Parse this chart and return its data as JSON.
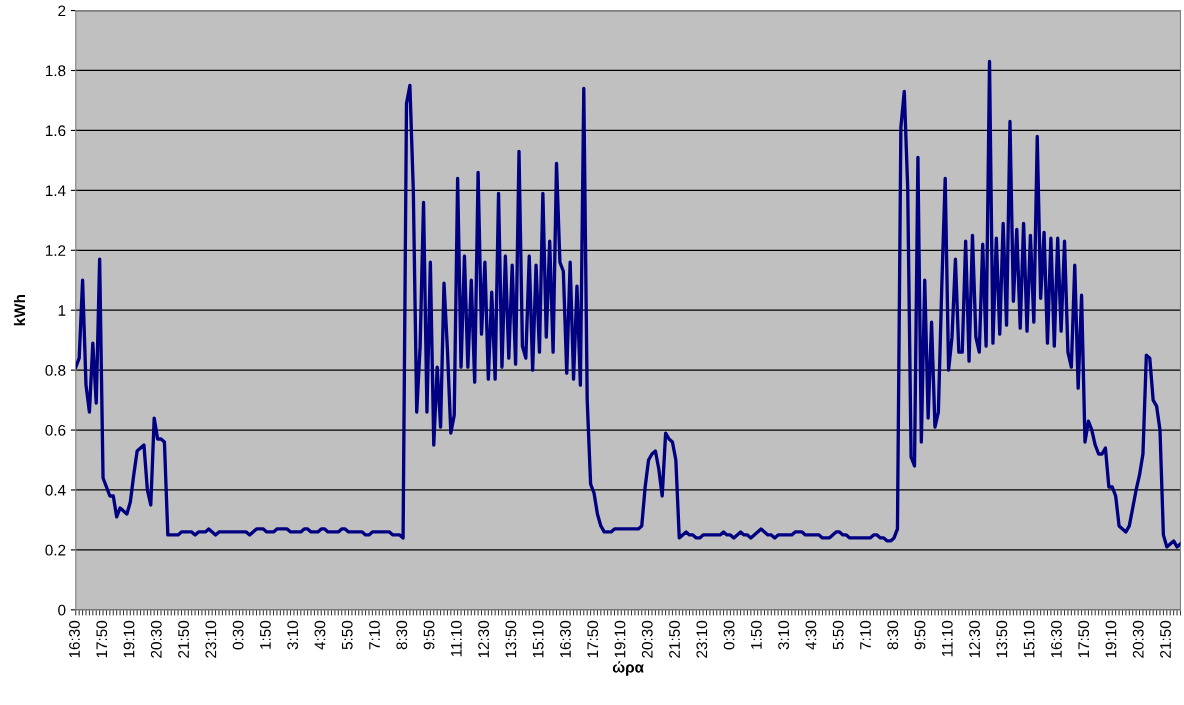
{
  "chart_data": {
    "type": "line",
    "xlabel": "ώρα",
    "ylabel": "kWh",
    "ylim": [
      0,
      2
    ],
    "yticks": [
      0,
      0.2,
      0.4,
      0.6,
      0.8,
      1,
      1.2,
      1.4,
      1.6,
      1.8,
      2
    ],
    "categories": [
      "16:30",
      null,
      null,
      null,
      null,
      null,
      null,
      null,
      "17:50",
      null,
      null,
      null,
      null,
      null,
      null,
      null,
      "19:10",
      null,
      null,
      null,
      null,
      null,
      null,
      null,
      "20:30",
      null,
      null,
      null,
      null,
      null,
      null,
      null,
      "21:50",
      null,
      null,
      null,
      null,
      null,
      null,
      null,
      "23:10",
      null,
      null,
      null,
      null,
      null,
      null,
      null,
      "0:30",
      null,
      null,
      null,
      null,
      null,
      null,
      null,
      "1:50",
      null,
      null,
      null,
      null,
      null,
      null,
      null,
      "3:10",
      null,
      null,
      null,
      null,
      null,
      null,
      null,
      "4:30",
      null,
      null,
      null,
      null,
      null,
      null,
      null,
      "5:50",
      null,
      null,
      null,
      null,
      null,
      null,
      null,
      "7:10",
      null,
      null,
      null,
      null,
      null,
      null,
      null,
      "8:30",
      null,
      null,
      null,
      null,
      null,
      null,
      null,
      "9:50",
      null,
      null,
      null,
      null,
      null,
      null,
      null,
      "11:10",
      null,
      null,
      null,
      null,
      null,
      null,
      null,
      "12:30",
      null,
      null,
      null,
      null,
      null,
      null,
      null,
      "13:50",
      null,
      null,
      null,
      null,
      null,
      null,
      null,
      "15:10",
      null,
      null,
      null,
      null,
      null,
      null,
      null,
      "16:30",
      null,
      null,
      null,
      null,
      null,
      null,
      null,
      "17:50",
      null,
      null,
      null,
      null,
      null,
      null,
      null,
      "19:10",
      null,
      null,
      null,
      null,
      null,
      null,
      null,
      "20:30",
      null,
      null,
      null,
      null,
      null,
      null,
      null,
      "21:50",
      null,
      null,
      null,
      null,
      null,
      null,
      null,
      "23:10",
      null,
      null,
      null,
      null,
      null,
      null,
      null,
      "0:30",
      null,
      null,
      null,
      null,
      null,
      null,
      null,
      "1:50",
      null,
      null,
      null,
      null,
      null,
      null,
      null,
      "3:10",
      null,
      null,
      null,
      null,
      null,
      null,
      null,
      "4:30",
      null,
      null,
      null,
      null,
      null,
      null,
      null,
      "5:50",
      null,
      null,
      null,
      null,
      null,
      null,
      null,
      "7:10",
      null,
      null,
      null,
      null,
      null,
      null,
      null,
      "8:30",
      null,
      null,
      null,
      null,
      null,
      null,
      null,
      "9:50",
      null,
      null,
      null,
      null,
      null,
      null,
      null,
      "11:10",
      null,
      null,
      null,
      null,
      null,
      null,
      null,
      "12:30",
      null,
      null,
      null,
      null,
      null,
      null,
      null,
      "13:50",
      null,
      null,
      null,
      null,
      null,
      null,
      null,
      "15:10",
      null,
      null,
      null,
      null,
      null,
      null,
      null,
      "16:30",
      null,
      null,
      null,
      null,
      null,
      null,
      null,
      "17:50",
      null,
      null,
      null,
      null,
      null,
      null,
      null,
      "19:10",
      null,
      null,
      null,
      null,
      null,
      null,
      null,
      "20:30",
      null,
      null,
      null,
      null,
      null,
      null,
      null,
      "21:50",
      null,
      null,
      null,
      null
    ],
    "grid": "y",
    "marker": "none",
    "line_style": "solid",
    "series": [
      {
        "color": "#000080",
        "values": [
          0.81,
          0.84,
          1.1,
          0.75,
          0.66,
          0.89,
          0.69,
          1.17,
          0.44,
          0.41,
          0.38,
          0.38,
          0.31,
          0.34,
          0.33,
          0.32,
          0.36,
          0.45,
          0.53,
          0.54,
          0.55,
          0.4,
          0.35,
          0.64,
          0.57,
          0.57,
          0.56,
          0.25,
          0.25,
          0.25,
          0.25,
          0.26,
          0.26,
          0.26,
          0.26,
          0.25,
          0.26,
          0.26,
          0.26,
          0.27,
          0.26,
          0.25,
          0.26,
          0.26,
          0.26,
          0.26,
          0.26,
          0.26,
          0.26,
          0.26,
          0.26,
          0.25,
          0.26,
          0.27,
          0.27,
          0.27,
          0.26,
          0.26,
          0.26,
          0.27,
          0.27,
          0.27,
          0.27,
          0.26,
          0.26,
          0.26,
          0.26,
          0.27,
          0.27,
          0.26,
          0.26,
          0.26,
          0.27,
          0.27,
          0.26,
          0.26,
          0.26,
          0.26,
          0.27,
          0.27,
          0.26,
          0.26,
          0.26,
          0.26,
          0.26,
          0.25,
          0.25,
          0.26,
          0.26,
          0.26,
          0.26,
          0.26,
          0.26,
          0.25,
          0.25,
          0.25,
          0.24,
          1.69,
          1.75,
          1.4,
          0.66,
          0.88,
          1.36,
          0.66,
          1.16,
          0.55,
          0.81,
          0.61,
          1.09,
          0.87,
          0.59,
          0.65,
          1.44,
          0.81,
          1.18,
          0.81,
          1.1,
          0.76,
          1.46,
          0.92,
          1.16,
          0.77,
          1.06,
          0.77,
          1.39,
          0.81,
          1.18,
          0.84,
          1.15,
          0.82,
          1.53,
          0.88,
          0.84,
          1.18,
          0.8,
          1.15,
          0.86,
          1.39,
          0.91,
          1.23,
          0.86,
          1.49,
          1.16,
          1.13,
          0.79,
          1.16,
          0.77,
          1.08,
          0.75,
          1.74,
          0.7,
          0.42,
          0.39,
          0.32,
          0.28,
          0.26,
          0.26,
          0.26,
          0.27,
          0.27,
          0.27,
          0.27,
          0.27,
          0.27,
          0.27,
          0.27,
          0.28,
          0.41,
          0.5,
          0.52,
          0.53,
          0.47,
          0.38,
          0.59,
          0.57,
          0.56,
          0.5,
          0.24,
          0.25,
          0.26,
          0.25,
          0.25,
          0.24,
          0.24,
          0.25,
          0.25,
          0.25,
          0.25,
          0.25,
          0.25,
          0.26,
          0.25,
          0.25,
          0.24,
          0.25,
          0.26,
          0.25,
          0.25,
          0.24,
          0.25,
          0.26,
          0.27,
          0.26,
          0.25,
          0.25,
          0.24,
          0.25,
          0.25,
          0.25,
          0.25,
          0.25,
          0.26,
          0.26,
          0.26,
          0.25,
          0.25,
          0.25,
          0.25,
          0.25,
          0.24,
          0.24,
          0.24,
          0.25,
          0.26,
          0.26,
          0.25,
          0.25,
          0.24,
          0.24,
          0.24,
          0.24,
          0.24,
          0.24,
          0.24,
          0.25,
          0.25,
          0.24,
          0.24,
          0.23,
          0.23,
          0.24,
          0.27,
          1.61,
          1.73,
          1.41,
          0.51,
          0.48,
          1.51,
          0.56,
          1.1,
          0.64,
          0.96,
          0.61,
          0.66,
          1.08,
          1.44,
          0.8,
          0.91,
          1.17,
          0.86,
          0.86,
          1.23,
          0.83,
          1.25,
          0.91,
          0.86,
          1.22,
          0.88,
          1.83,
          0.89,
          1.24,
          0.92,
          1.29,
          0.95,
          1.63,
          1.03,
          1.27,
          0.94,
          1.29,
          0.93,
          1.25,
          0.96,
          1.58,
          1.04,
          1.26,
          0.89,
          1.24,
          0.88,
          1.24,
          0.93,
          1.23,
          0.86,
          0.81,
          1.15,
          0.74,
          1.05,
          0.56,
          0.63,
          0.6,
          0.55,
          0.52,
          0.52,
          0.54,
          0.41,
          0.41,
          0.38,
          0.28,
          0.27,
          0.26,
          0.28,
          0.34,
          0.4,
          0.45,
          0.52,
          0.85,
          0.84,
          0.7,
          0.68,
          0.6,
          0.25,
          0.21,
          0.22,
          0.23,
          0.21,
          0.22
        ]
      }
    ]
  }
}
